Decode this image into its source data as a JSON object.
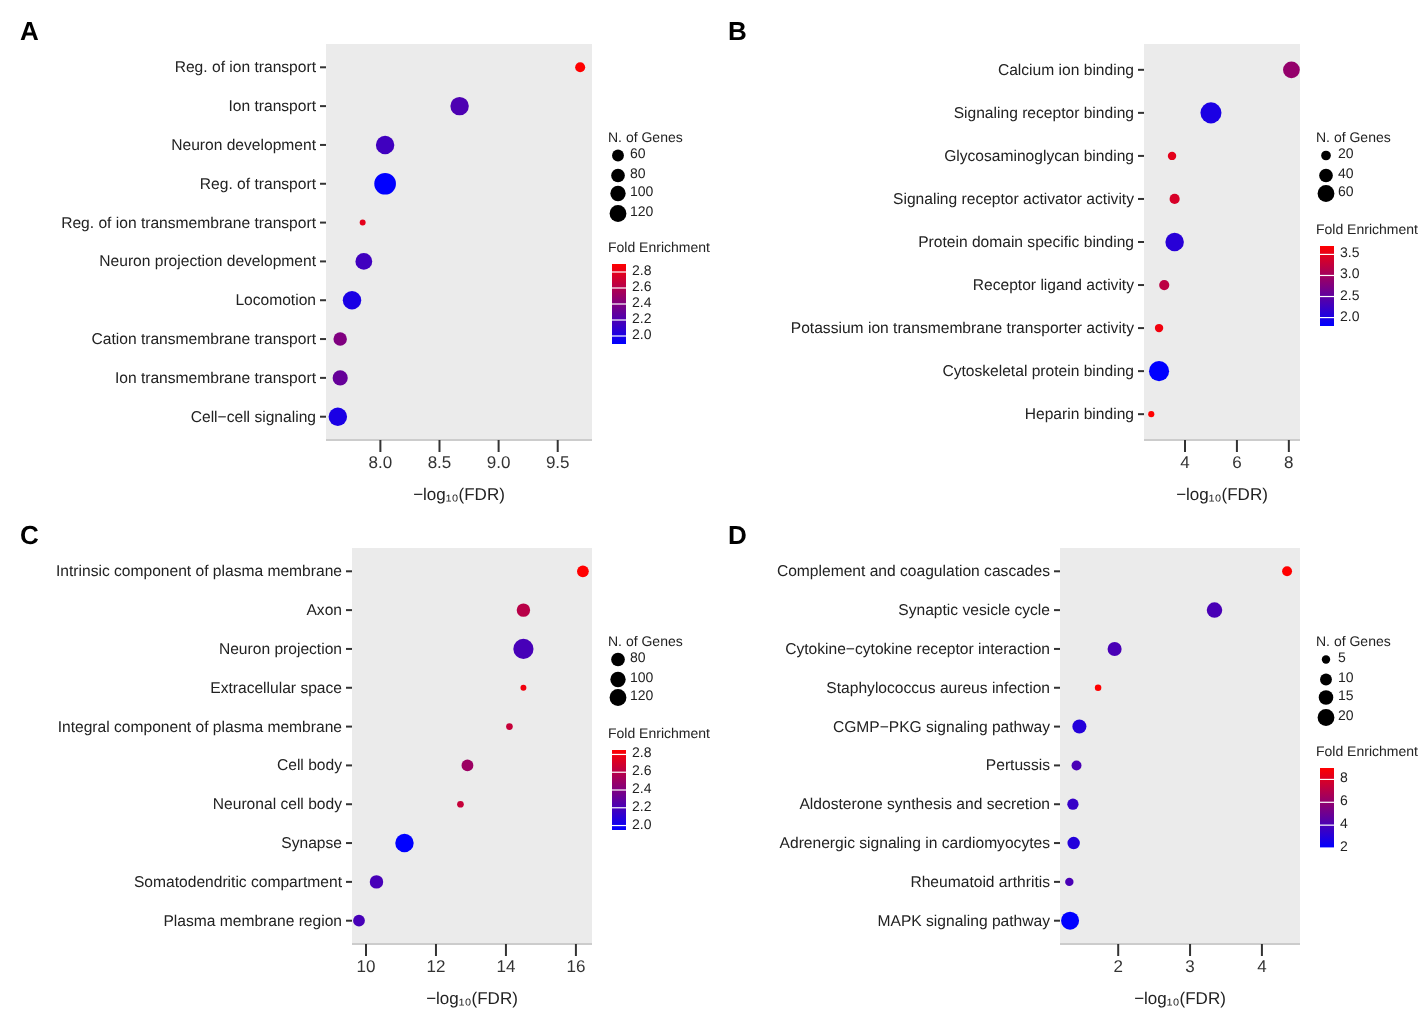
{
  "chart_data": [
    {
      "type": "bubble",
      "title": "A",
      "orientation": "horizontal",
      "xlabel": "−log₁₀(FDR)",
      "legend_title": "N. of Genes",
      "clabel": "Fold Enrichment",
      "categories": [
        "Reg. of ion transport",
        "Ion transport",
        "Neuron development",
        "Reg. of transport",
        "Reg. of ion transmembrane transport",
        "Neuron projection development",
        "Locomotion",
        "Cation transmembrane transport",
        "Ion transmembrane transport",
        "Cell−cell signaling"
      ],
      "values": [
        9.69,
        8.67,
        8.04,
        8.04,
        7.85,
        7.86,
        7.76,
        7.66,
        7.66,
        7.64
      ],
      "sizes": [
        43,
        145,
        145,
        200,
        15,
        120,
        145,
        77,
        97,
        145
      ],
      "size_legend": [
        60,
        80,
        100,
        120
      ],
      "cvalues": [
        2.9,
        2.2,
        2.15,
        1.9,
        2.8,
        2.15,
        2.0,
        2.4,
        2.3,
        2.0
      ],
      "clim": [
        1.9,
        2.9
      ],
      "cticks": [
        {
          "value": 2,
          "label": "2.0"
        },
        {
          "value": 2.2,
          "label": "2.2"
        },
        {
          "value": 2.4,
          "label": "2.4"
        },
        {
          "value": 2.6,
          "label": "2.6"
        },
        {
          "value": 2.8,
          "label": "2.8"
        }
      ],
      "xlim": [
        7.54,
        9.79
      ],
      "xticks": [
        {
          "value": 8,
          "label": "8.0"
        },
        {
          "value": 8.5,
          "label": "8.5"
        },
        {
          "value": 9,
          "label": "9.0"
        },
        {
          "value": 9.5,
          "label": "9.5"
        }
      ]
    },
    {
      "type": "bubble",
      "title": "B",
      "orientation": "horizontal",
      "xlabel": "−log₁₀(FDR)",
      "legend_title": "N. of Genes",
      "clabel": "Fold Enrichment",
      "categories": [
        "Calcium ion binding",
        "Signaling receptor binding",
        "Glycosaminoglycan binding",
        "Signaling receptor activator activity",
        "Protein domain specific binding",
        "Receptor ligand activity",
        "Potassium ion transmembrane transporter activity",
        "Cytoskeletal protein binding",
        "Heparin binding"
      ],
      "values": [
        8.1,
        5.0,
        3.5,
        3.6,
        3.6,
        3.2,
        3.0,
        3.0,
        2.7
      ],
      "sizes": [
        60,
        94,
        15,
        22,
        73,
        22,
        15,
        86,
        8
      ],
      "size_legend": [
        20,
        40,
        60
      ],
      "cvalues": [
        2.9,
        2.0,
        3.5,
        3.4,
        2.1,
        3.2,
        3.6,
        1.8,
        3.7
      ],
      "clim": [
        1.8,
        3.7
      ],
      "cticks": [
        {
          "value": 2,
          "label": "2.0"
        },
        {
          "value": 2.5,
          "label": "2.5"
        },
        {
          "value": 3,
          "label": "3.0"
        },
        {
          "value": 3.5,
          "label": "3.5"
        }
      ],
      "xlim": [
        2.42,
        8.43
      ],
      "xticks": [
        4,
        6,
        8
      ]
    },
    {
      "type": "bubble",
      "title": "C",
      "orientation": "horizontal",
      "xlabel": "−log₁₀(FDR)",
      "legend_title": "N. of Genes",
      "clabel": "Fold Enrichment",
      "categories": [
        "Intrinsic component of plasma membrane",
        "Axon",
        "Neuron projection",
        "Extracellular space",
        "Integral component of plasma membrane",
        "Cell body",
        "Neuronal cell body",
        "Synapse",
        "Somatodendritic compartment",
        "Plasma membrane region"
      ],
      "values": [
        16.2,
        14.5,
        14.5,
        14.5,
        14.1,
        12.9,
        12.7,
        11.1,
        10.3,
        9.8
      ],
      "sizes": [
        59,
        77,
        173,
        15,
        19,
        59,
        19,
        145,
        77,
        59
      ],
      "size_legend": [
        80,
        100,
        120
      ],
      "cvalues": [
        2.85,
        2.6,
        2.2,
        2.8,
        2.65,
        2.5,
        2.65,
        1.95,
        2.2,
        2.2
      ],
      "clim": [
        1.95,
        2.85
      ],
      "cticks": [
        {
          "value": 2,
          "label": "2.0"
        },
        {
          "value": 2.2,
          "label": "2.2"
        },
        {
          "value": 2.4,
          "label": "2.4"
        },
        {
          "value": 2.6,
          "label": "2.6"
        },
        {
          "value": 2.8,
          "label": "2.8"
        }
      ],
      "xlim": [
        9.6,
        16.46
      ],
      "xticks": [
        10,
        12,
        14,
        16
      ]
    },
    {
      "type": "bubble",
      "title": "D",
      "orientation": "horizontal",
      "xlabel": "−log₁₀(FDR)",
      "legend_title": "N. of Genes",
      "clabel": "Fold Enrichment",
      "categories": [
        "Complement and coagulation cascades",
        "Synaptic vesicle cycle",
        "Cytokine−cytokine receptor interaction",
        "Staphylococcus aureus infection",
        "CGMP−PKG signaling pathway",
        "Pertussis",
        "Aldosterone synthesis and secretion",
        "Adrenergic signaling in cardiomyocytes",
        "Rheumatoid arthritis",
        "MAPK signaling pathway"
      ],
      "values": [
        4.35,
        3.34,
        1.95,
        1.72,
        1.46,
        1.42,
        1.37,
        1.38,
        1.32,
        1.33
      ],
      "sizes": [
        7,
        17,
        14,
        3,
        14,
        7,
        9,
        11,
        5,
        23
      ],
      "size_legend": [
        5,
        10,
        15,
        20
      ],
      "cvalues": [
        9,
        4,
        4,
        9,
        3,
        4,
        3.5,
        3,
        4,
        2
      ],
      "clim": [
        2,
        9
      ],
      "cticks": [
        2,
        4,
        6,
        8
      ],
      "xlim": [
        1.19,
        4.53
      ],
      "xticks": [
        2,
        3,
        4
      ]
    }
  ]
}
